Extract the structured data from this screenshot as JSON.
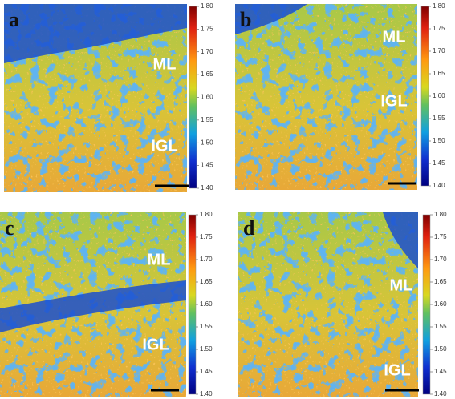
{
  "colorbar": {
    "ticks": [
      {
        "value": 1.8,
        "label": "1.80"
      },
      {
        "value": 1.75,
        "label": "1.75"
      },
      {
        "value": 1.7,
        "label": "1.70"
      },
      {
        "value": 1.65,
        "label": "1.65"
      },
      {
        "value": 1.6,
        "label": "1.60"
      },
      {
        "value": 1.55,
        "label": "1.55"
      },
      {
        "value": 1.5,
        "label": "1.50"
      },
      {
        "value": 1.45,
        "label": "1.45"
      },
      {
        "value": 1.4,
        "label": "1.40"
      }
    ]
  },
  "panels": [
    {
      "label": "a",
      "regions": [
        "ML",
        "IGL"
      ]
    },
    {
      "label": "b",
      "regions": [
        "ML",
        "IGL"
      ]
    },
    {
      "label": "c",
      "regions": [
        "ML",
        "IGL"
      ]
    },
    {
      "label": "d",
      "regions": [
        "ML",
        "IGL"
      ]
    }
  ]
}
